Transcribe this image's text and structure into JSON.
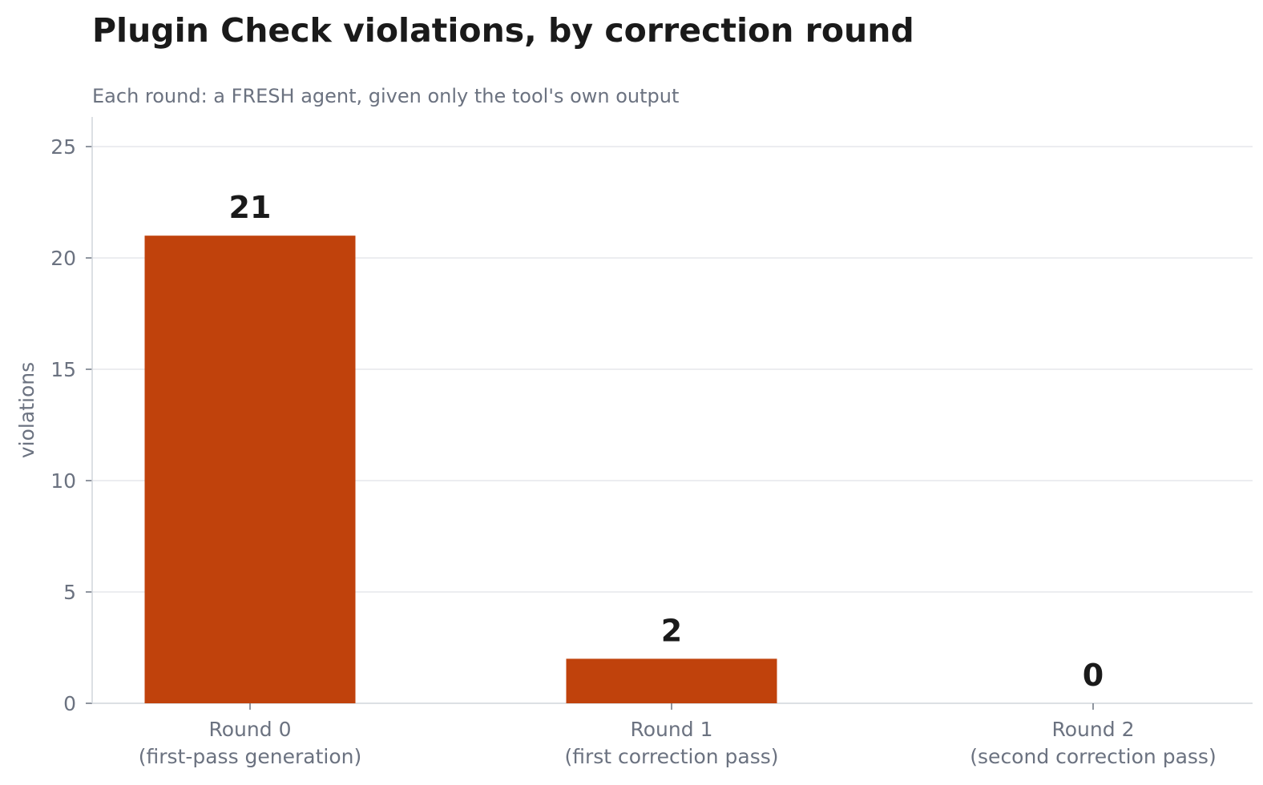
{
  "chart_data": {
    "type": "bar",
    "title": "Plugin Check violations, by correction round",
    "subtitle": "Each round: a FRESH agent, given only the tool's own output",
    "ylabel": "violations",
    "xlabel": "",
    "ylim": [
      0,
      26
    ],
    "yticks": [
      0,
      5,
      10,
      15,
      20,
      25
    ],
    "categories": [
      [
        "Round 0",
        "(first-pass generation)"
      ],
      [
        "Round 1",
        "(first correction pass)"
      ],
      [
        "Round 2",
        "(second correction pass)"
      ]
    ],
    "values": [
      21,
      2,
      0
    ],
    "data_labels": [
      "21",
      "2",
      "0"
    ],
    "grid": "horizontal",
    "colors": {
      "bar": "#c0420c",
      "grid": "#e5e7eb",
      "axis": "#d1d5db",
      "text": "#6b7280",
      "title": "#1a1a1a"
    }
  }
}
